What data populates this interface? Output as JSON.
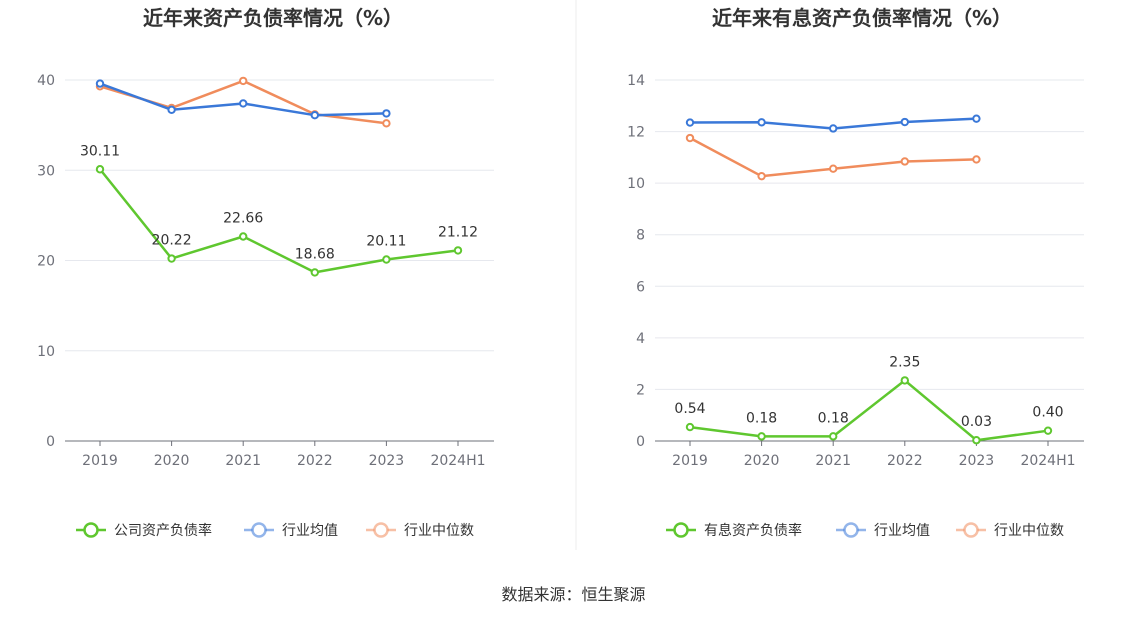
{
  "source_text": "数据来源：恒生聚源",
  "chart_data": [
    {
      "type": "line",
      "title": "近年来资产负债率情况（%）",
      "categories": [
        "2019",
        "2020",
        "2021",
        "2022",
        "2023",
        "2024H1"
      ],
      "ylim": [
        0,
        40
      ],
      "yticks": [
        "0",
        "10",
        "20",
        "30",
        "40"
      ],
      "grid": true,
      "legend_position": "bottom",
      "series": [
        {
          "name": "公司资产负债率",
          "color": "#5fc72f",
          "values": [
            30.11,
            20.22,
            22.66,
            18.68,
            20.11,
            21.12
          ],
          "labels": [
            "30.11",
            "20.22",
            "22.66",
            "18.68",
            "20.11",
            "21.12"
          ]
        },
        {
          "name": "行业均值",
          "color": "#3a78d8",
          "values": [
            39.6,
            36.7,
            37.4,
            36.1,
            36.3,
            null
          ]
        },
        {
          "name": "行业中位数",
          "color": "#f08c5c",
          "values": [
            39.3,
            36.9,
            39.9,
            36.2,
            35.2,
            null
          ]
        }
      ]
    },
    {
      "type": "line",
      "title": "近年来有息资产负债率情况（%）",
      "categories": [
        "2019",
        "2020",
        "2021",
        "2022",
        "2023",
        "2024H1"
      ],
      "ylim": [
        0,
        14
      ],
      "yticks": [
        "0",
        "2",
        "4",
        "6",
        "8",
        "10",
        "12",
        "14"
      ],
      "grid": true,
      "legend_position": "bottom",
      "series": [
        {
          "name": "有息资产负债率",
          "color": "#5fc72f",
          "values": [
            0.54,
            0.18,
            0.18,
            2.35,
            0.03,
            0.4
          ],
          "labels": [
            "0.54",
            "0.18",
            "0.18",
            "2.35",
            "0.03",
            "0.40"
          ]
        },
        {
          "name": "行业均值",
          "color": "#3a78d8",
          "values": [
            12.35,
            12.36,
            12.12,
            12.37,
            12.5,
            null
          ]
        },
        {
          "name": "行业中位数",
          "color": "#f08c5c",
          "values": [
            11.75,
            10.27,
            10.56,
            10.84,
            10.92,
            null
          ]
        }
      ]
    }
  ]
}
